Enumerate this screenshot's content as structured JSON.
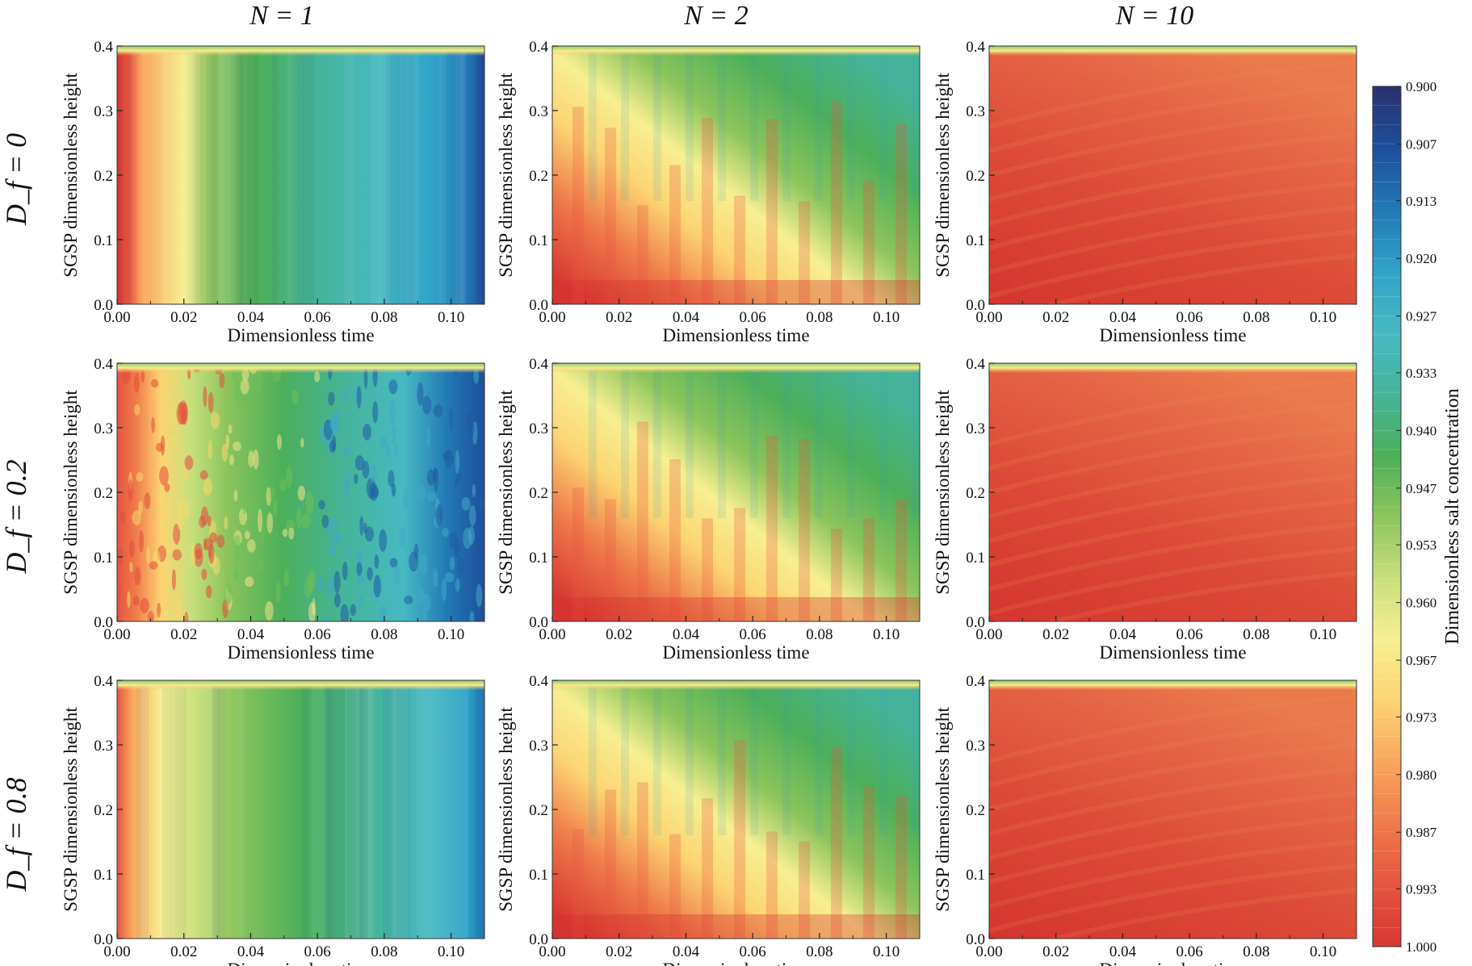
{
  "chart_data": {
    "type": "heatmap",
    "figure_kind": "3x3 grid of filled contour plots",
    "col_headers": [
      "N = 1",
      "N = 2",
      "N = 10"
    ],
    "row_headers": [
      "D_f = 0",
      "D_f = 0.2",
      "D_f = 0.8"
    ],
    "xlabel": "Dimensionless  time",
    "ylabel": "SGSP dimensionless height",
    "xlim": [
      0,
      0.11
    ],
    "ylim": [
      0,
      0.4
    ],
    "x_ticks": [
      "0.00",
      "0.02",
      "0.04",
      "0.06",
      "0.08",
      "0.10"
    ],
    "x_tick_values": [
      0,
      0.02,
      0.04,
      0.06,
      0.08,
      0.1
    ],
    "y_ticks": [
      "0.0",
      "0.1",
      "0.2",
      "0.3",
      "0.4"
    ],
    "y_tick_values": [
      0,
      0.1,
      0.2,
      0.3,
      0.4
    ],
    "colorbar": {
      "label": "Dimensionless salt concentration",
      "range": [
        0.9,
        1.0
      ],
      "tick_labels": [
        "0.900",
        "0.907",
        "0.913",
        "0.920",
        "0.927",
        "0.933",
        "0.940",
        "0.947",
        "0.953",
        "0.960",
        "0.967",
        "0.973",
        "0.980",
        "0.987",
        "0.993",
        "1.000"
      ],
      "tick_values": [
        0.9,
        0.9067,
        0.9133,
        0.92,
        0.9267,
        0.9333,
        0.94,
        0.9467,
        0.9533,
        0.96,
        0.9667,
        0.9733,
        0.98,
        0.9867,
        0.9933,
        1.0
      ],
      "colors": [
        "#2a2f6e",
        "#1e4f9c",
        "#2278b5",
        "#2fa3c7",
        "#47b9c3",
        "#45b49a",
        "#4caf5a",
        "#8cc45c",
        "#c8df7c",
        "#f7ef92",
        "#fcd472",
        "#f8a65c",
        "#ef7a4a",
        "#e55440",
        "#d73732"
      ]
    },
    "panels": [
      {
        "row": 0,
        "col": 0,
        "pattern": "sweep"
      },
      {
        "row": 0,
        "col": 1,
        "pattern": "diag"
      },
      {
        "row": 0,
        "col": 2,
        "pattern": "red"
      },
      {
        "row": 1,
        "col": 0,
        "pattern": "noisy"
      },
      {
        "row": 1,
        "col": 1,
        "pattern": "diag"
      },
      {
        "row": 1,
        "col": 2,
        "pattern": "red"
      },
      {
        "row": 2,
        "col": 0,
        "pattern": "smooth"
      },
      {
        "row": 2,
        "col": 1,
        "pattern": "diag"
      },
      {
        "row": 2,
        "col": 2,
        "pattern": "red"
      }
    ]
  }
}
